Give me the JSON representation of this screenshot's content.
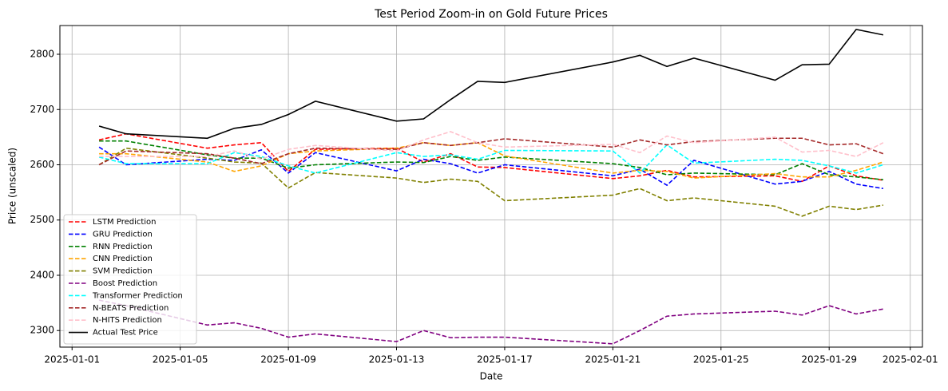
{
  "chart_data": {
    "type": "line",
    "title": "Test Period Zoom-in on Gold Future Prices",
    "x_label": "Date",
    "y_label": "Price (unscaled)",
    "x": [
      "2025-01-02",
      "2025-01-03",
      "2025-01-06",
      "2025-01-07",
      "2025-01-08",
      "2025-01-09",
      "2025-01-10",
      "2025-01-13",
      "2025-01-14",
      "2025-01-15",
      "2025-01-16",
      "2025-01-17",
      "2025-01-21",
      "2025-01-22",
      "2025-01-23",
      "2025-01-24",
      "2025-01-27",
      "2025-01-28",
      "2025-01-29",
      "2025-01-30",
      "2025-01-31"
    ],
    "xlim": [
      "2024-12-31T13:12",
      "2025-02-01T10:48"
    ],
    "xticks": [
      "2025-01-01",
      "2025-01-05",
      "2025-01-09",
      "2025-01-13",
      "2025-01-17",
      "2025-01-21",
      "2025-01-25",
      "2025-01-29",
      "2025-02-01"
    ],
    "ylim": [
      2270,
      2852
    ],
    "yticks": [
      2300,
      2400,
      2500,
      2600,
      2700,
      2800
    ],
    "grid": true,
    "legend": "lower left",
    "series": [
      {
        "name": "LSTM Prediction",
        "color": "#ff0000",
        "linestyle": "dashed",
        "values": [
          2645,
          2656,
          2630,
          2636,
          2640,
          2588,
          2628,
          2630,
          2605,
          2620,
          2596,
          2595,
          2575,
          2580,
          2590,
          2578,
          2580,
          2570,
          2598,
          2580,
          2572
        ]
      },
      {
        "name": "GRU Prediction",
        "color": "#0000ff",
        "linestyle": "dashed",
        "values": [
          2632,
          2600,
          2610,
          2608,
          2627,
          2585,
          2622,
          2589,
          2610,
          2602,
          2585,
          2600,
          2580,
          2592,
          2563,
          2608,
          2565,
          2570,
          2588,
          2565,
          2557
        ]
      },
      {
        "name": "RNN Prediction",
        "color": "#008000",
        "linestyle": "dashed",
        "values": [
          2643,
          2643,
          2618,
          2612,
          2612,
          2594,
          2600,
          2605,
          2604,
          2615,
          2608,
          2614,
          2602,
          2595,
          2582,
          2585,
          2582,
          2602,
          2582,
          2578,
          2573
        ]
      },
      {
        "name": "CNN Prediction",
        "color": "#ffa500",
        "linestyle": "dashed",
        "values": [
          2620,
          2620,
          2605,
          2588,
          2598,
          2620,
          2625,
          2630,
          2640,
          2635,
          2640,
          2616,
          2585,
          2590,
          2588,
          2576,
          2584,
          2578,
          2578,
          2590,
          2605
        ]
      },
      {
        "name": "SVM Prediction",
        "color": "#808000",
        "linestyle": "dashed",
        "values": [
          2600,
          2630,
          2612,
          2605,
          2603,
          2558,
          2586,
          2576,
          2568,
          2574,
          2570,
          2535,
          2545,
          2557,
          2535,
          2540,
          2525,
          2507,
          2525,
          2519,
          2527
        ]
      },
      {
        "name": "Boost Prediction",
        "color": "#800080",
        "linestyle": "dashed",
        "values": [
          2355,
          2345,
          2310,
          2314,
          2304,
          2288,
          2294,
          2280,
          2300,
          2287,
          2288,
          2288,
          2276,
          2300,
          2326,
          2330,
          2335,
          2328,
          2345,
          2330,
          2339
        ]
      },
      {
        "name": "Transformer Prediction",
        "color": "#00ffff",
        "linestyle": "dashed",
        "values": [
          2614,
          2602,
          2602,
          2622,
          2615,
          2598,
          2585,
          2622,
          2615,
          2618,
          2610,
          2626,
          2625,
          2585,
          2636,
          2603,
          2610,
          2608,
          2598,
          2585,
          2600
        ]
      },
      {
        "name": "N-BEATS Prediction",
        "color": "#a52a2a",
        "linestyle": "dashed",
        "values": [
          2600,
          2625,
          2620,
          2612,
          2602,
          2620,
          2630,
          2628,
          2640,
          2635,
          2640,
          2647,
          2632,
          2645,
          2636,
          2642,
          2648,
          2648,
          2636,
          2638,
          2620
        ]
      },
      {
        "name": "N-HITS Prediction",
        "color": "#ffc0cb",
        "linestyle": "dashed",
        "values": [
          2615,
          2615,
          2615,
          2625,
          2610,
          2628,
          2635,
          2625,
          2645,
          2660,
          2640,
          2632,
          2637,
          2622,
          2652,
          2640,
          2650,
          2623,
          2626,
          2615,
          2640
        ]
      },
      {
        "name": "Actual Test Price",
        "color": "#000000",
        "linestyle": "solid",
        "values": [
          2670,
          2656,
          2648,
          2666,
          2673,
          2691,
          2715,
          2679,
          2683,
          2718,
          2751,
          2749,
          2786,
          2798,
          2778,
          2793,
          2753,
          2781,
          2782,
          2845,
          2835
        ]
      }
    ]
  }
}
